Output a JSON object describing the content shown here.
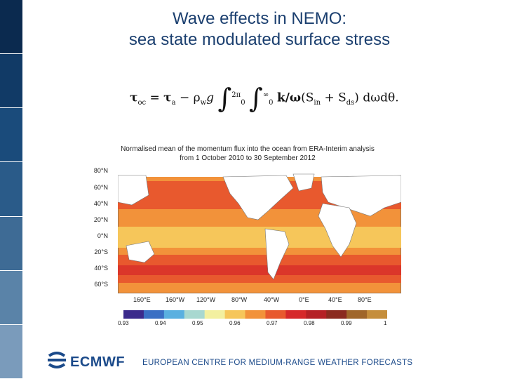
{
  "slide": {
    "title_line1": "Wave effects in NEMO:",
    "title_line2": "sea state modulated surface stress"
  },
  "formula": {
    "lhs": "τ",
    "lhs_sub": "oc",
    "eq": " = ",
    "tau_a": "τ",
    "tau_a_sub": "a",
    "minus": " − ρ",
    "rho_sub": "w",
    "g": "g",
    "int_upper1": "2π",
    "int_lower1": "0",
    "int_upper2": "∞",
    "int_lower2": "0",
    "k_over_omega": "k/ω",
    "source": "(S",
    "sin_sub": "in",
    "plus": " + S",
    "sds_sub": "ds",
    "tail": ") dωdθ."
  },
  "map": {
    "caption_line1": "Normalised mean of the momentum flux into the ocean from ERA-Interim analysis",
    "caption_line2": "from 1 October 2010 to 30 September 2012",
    "lat_labels": [
      "80°N",
      "60°N",
      "40°N",
      "20°N",
      "0°N",
      "20°S",
      "40°S",
      "60°S"
    ],
    "lon_labels": [
      "160°E",
      "160°W",
      "120°W",
      "80°W",
      "40°W",
      "0°E",
      "40°E",
      "80°E"
    ],
    "colorbar_labels": [
      "0.93",
      "0.94",
      "0.95",
      "0.96",
      "0.97",
      "0.98",
      "0.99",
      "1"
    ],
    "colorbar_colors": [
      "#3b2a8c",
      "#3a6fc4",
      "#5ab0e0",
      "#a8d8d0",
      "#f3f0a0",
      "#f6c65a",
      "#f2923a",
      "#e8592e",
      "#d6282a",
      "#b52025",
      "#8b2a1f",
      "#a0662a",
      "#c58e3c"
    ],
    "ocean_colors": [
      "#f6c65a",
      "#f2923a",
      "#e8592e",
      "#d6282a"
    ],
    "land_color": "#ffffff"
  },
  "footer": {
    "org": "ECMWF",
    "org_full": "EUROPEAN CENTRE FOR MEDIUM-RANGE WEATHER FORECASTS",
    "logo_color": "#1b4a8a"
  },
  "sidebar": {
    "colors": [
      "#0b2a4f",
      "#113a66",
      "#1a4b7b",
      "#2a5b89",
      "#3e6b95",
      "#5a83a8",
      "#7a9bbb"
    ]
  }
}
